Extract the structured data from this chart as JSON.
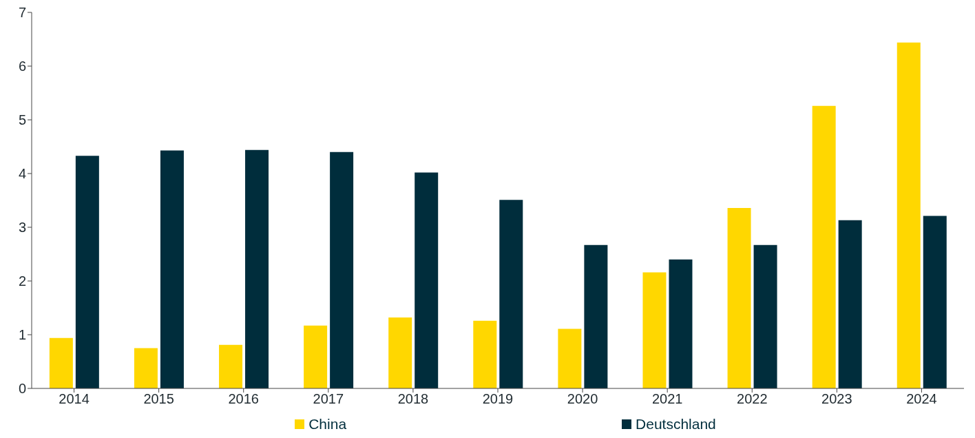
{
  "chart_data": {
    "type": "bar",
    "categories": [
      "2014",
      "2015",
      "2016",
      "2017",
      "2018",
      "2019",
      "2020",
      "2021",
      "2022",
      "2023",
      "2024"
    ],
    "series": [
      {
        "name": "China",
        "color": "#ffd700",
        "values": [
          0.94,
          0.75,
          0.81,
          1.17,
          1.32,
          1.26,
          1.11,
          2.16,
          3.36,
          5.26,
          6.44
        ]
      },
      {
        "name": "Deutschland",
        "color": "#002d3c",
        "values": [
          4.33,
          4.43,
          4.44,
          4.4,
          4.02,
          3.51,
          2.67,
          2.4,
          2.67,
          3.13,
          3.21
        ]
      }
    ],
    "ylim": [
      0,
      7
    ],
    "yticks": [
      0,
      1,
      2,
      3,
      4,
      5,
      6,
      7
    ],
    "grid": false,
    "legend": "bottom"
  }
}
